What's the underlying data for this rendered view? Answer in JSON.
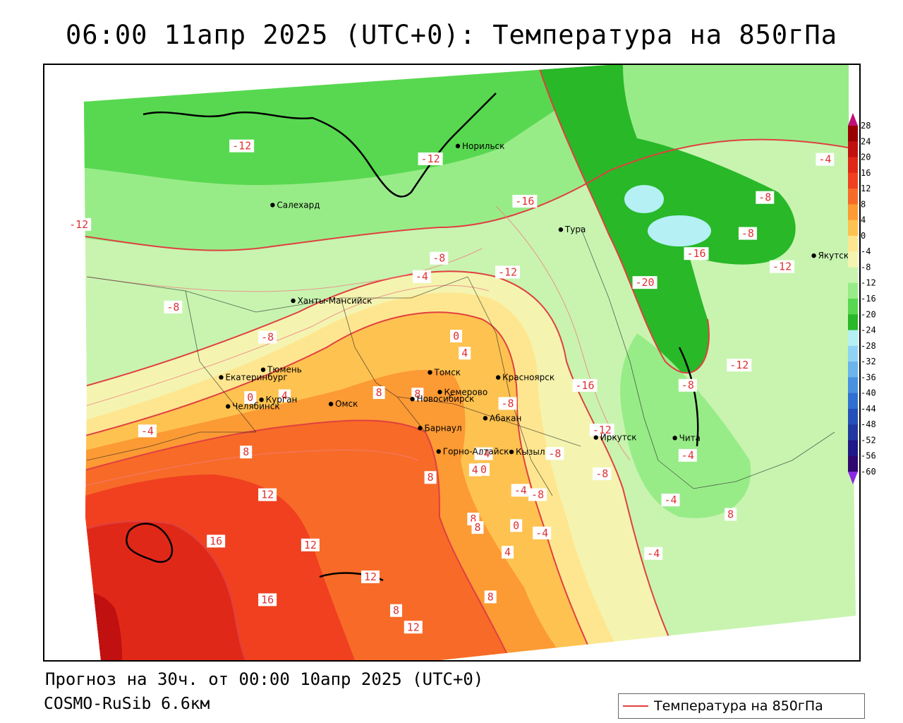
{
  "title": "06:00 11апр 2025 (UTC+0): Температура на 850гПа",
  "footer": {
    "forecast": "Прогноз на 30ч. от 00:00 10апр 2025 (UTC+0)",
    "model": "COSMO-RuSib 6.6км"
  },
  "legend": {
    "label": "Температура на 850гПа",
    "line_color": "#e04040"
  },
  "colorbar": {
    "ticks": [
      "28",
      "24",
      "20",
      "16",
      "12",
      "8",
      "4",
      "0",
      "-4",
      "-8",
      "-12",
      "-16",
      "-20",
      "-24",
      "-28",
      "-32",
      "-36",
      "-40",
      "-44",
      "-48",
      "-52",
      "-56",
      "-60"
    ],
    "colors": [
      "#9b0000",
      "#c01010",
      "#e02818",
      "#f04020",
      "#f86a28",
      "#fc9a34",
      "#fec250",
      "#fee690",
      "#f4f4b0",
      "#c8f4b0",
      "#98ec88",
      "#58d850",
      "#28b828",
      "#b4f0f4",
      "#90d4f4",
      "#6cb4ec",
      "#4890e0",
      "#3070d0",
      "#2450b8",
      "#2038a0",
      "#201888",
      "#300870"
    ]
  },
  "cities": [
    {
      "name": "Норильск",
      "lon": 88.2,
      "lat": 69.35
    },
    {
      "name": "Салехард",
      "lon": 66.6,
      "lat": 66.53
    },
    {
      "name": "Тура",
      "lon": 100.2,
      "lat": 64.27
    },
    {
      "name": "Якутск",
      "lon": 129.7,
      "lat": 62.03
    },
    {
      "name": "Ханты-Мансийск",
      "lon": 69.0,
      "lat": 61.0
    },
    {
      "name": "Екатеринбург",
      "lon": 60.6,
      "lat": 56.84
    },
    {
      "name": "Тюмень",
      "lon": 65.5,
      "lat": 57.15
    },
    {
      "name": "Челябинск",
      "lon": 61.4,
      "lat": 55.16
    },
    {
      "name": "Курган",
      "lon": 65.3,
      "lat": 55.44
    },
    {
      "name": "Омск",
      "lon": 73.4,
      "lat": 54.99
    },
    {
      "name": "Новосибирск",
      "lon": 82.9,
      "lat": 55.03
    },
    {
      "name": "Томск",
      "lon": 84.95,
      "lat": 56.5
    },
    {
      "name": "Кемерово",
      "lon": 86.1,
      "lat": 55.35
    },
    {
      "name": "Красноярск",
      "lon": 92.9,
      "lat": 56.01
    },
    {
      "name": "Барнаул",
      "lon": 83.8,
      "lat": 53.35
    },
    {
      "name": "Абакан",
      "lon": 91.4,
      "lat": 53.72
    },
    {
      "name": "Горно-Алтайск",
      "lon": 85.96,
      "lat": 51.96
    },
    {
      "name": "Кызыл",
      "lon": 94.45,
      "lat": 51.72
    },
    {
      "name": "Иркутск",
      "lon": 104.3,
      "lat": 52.29
    },
    {
      "name": "Чита",
      "lon": 113.5,
      "lat": 52.03
    }
  ],
  "isotherm_labels": [
    {
      "value": "-4",
      "lon": 131,
      "lat": 67.5
    },
    {
      "value": "-8",
      "lon": 124,
      "lat": 65.5
    },
    {
      "value": "-8",
      "lon": 122,
      "lat": 63.5
    },
    {
      "value": "-12",
      "lon": 63,
      "lat": 70
    },
    {
      "value": "-12",
      "lon": 44,
      "lat": 66
    },
    {
      "value": "-12",
      "lon": 85,
      "lat": 68.7
    },
    {
      "value": "-16",
      "lon": 96,
      "lat": 66
    },
    {
      "value": "-16",
      "lon": 116,
      "lat": 62.5
    },
    {
      "value": "-12",
      "lon": 126,
      "lat": 61.5
    },
    {
      "value": "-20",
      "lon": 110,
      "lat": 61
    },
    {
      "value": "-8",
      "lon": 86,
      "lat": 63
    },
    {
      "value": "-4",
      "lon": 84,
      "lat": 62
    },
    {
      "value": "-12",
      "lon": 94,
      "lat": 62
    },
    {
      "value": "-8",
      "lon": 55,
      "lat": 61
    },
    {
      "value": "-8",
      "lon": 66,
      "lat": 59
    },
    {
      "value": "0",
      "lon": 88,
      "lat": 58.5
    },
    {
      "value": "4",
      "lon": 89,
      "lat": 57.5
    },
    {
      "value": "-12",
      "lon": 121,
      "lat": 56
    },
    {
      "value": "-8",
      "lon": 115,
      "lat": 55
    },
    {
      "value": "-16",
      "lon": 103,
      "lat": 55.3
    },
    {
      "value": "0",
      "lon": 64,
      "lat": 55.6
    },
    {
      "value": "4",
      "lon": 68,
      "lat": 55.6
    },
    {
      "value": "8",
      "lon": 79,
      "lat": 55.5
    },
    {
      "value": "8",
      "lon": 83.5,
      "lat": 55.3
    },
    {
      "value": "-8",
      "lon": 94,
      "lat": 54.5
    },
    {
      "value": "-4",
      "lon": 52,
      "lat": 54
    },
    {
      "value": "8",
      "lon": 63.5,
      "lat": 52.5
    },
    {
      "value": "12",
      "lon": 66,
      "lat": 50
    },
    {
      "value": "16",
      "lon": 60,
      "lat": 47.5
    },
    {
      "value": "12",
      "lon": 71,
      "lat": 47
    },
    {
      "value": "16",
      "lon": 66,
      "lat": 44
    },
    {
      "value": "12",
      "lon": 78,
      "lat": 45
    },
    {
      "value": "8",
      "lon": 81,
      "lat": 43
    },
    {
      "value": "12",
      "lon": 83,
      "lat": 42
    },
    {
      "value": "8",
      "lon": 85,
      "lat": 50.5
    },
    {
      "value": "-4",
      "lon": 91.2,
      "lat": 51.7
    },
    {
      "value": "0",
      "lon": 91.2,
      "lat": 50.8
    },
    {
      "value": "4",
      "lon": 90.2,
      "lat": 50.8
    },
    {
      "value": "-8",
      "lon": 99.5,
      "lat": 51.5
    },
    {
      "value": "-4",
      "lon": 95.5,
      "lat": 49.5
    },
    {
      "value": "-8",
      "lon": 97.5,
      "lat": 49.2
    },
    {
      "value": "-12",
      "lon": 105,
      "lat": 52.7
    },
    {
      "value": "-8",
      "lon": 105,
      "lat": 50.2
    },
    {
      "value": "-4",
      "lon": 115,
      "lat": 51
    },
    {
      "value": "-4",
      "lon": 113,
      "lat": 48.5
    },
    {
      "value": "8",
      "lon": 90,
      "lat": 48
    },
    {
      "value": "8",
      "lon": 90.5,
      "lat": 47.5
    },
    {
      "value": "0",
      "lon": 95,
      "lat": 47.5
    },
    {
      "value": "-4",
      "lon": 98,
      "lat": 47
    },
    {
      "value": "4",
      "lon": 94,
      "lat": 46
    },
    {
      "value": "8",
      "lon": 92,
      "lat": 43.5
    },
    {
      "value": "-4",
      "lon": 111,
      "lat": 45.5
    },
    {
      "value": "8",
      "lon": 120,
      "lat": 47.5
    }
  ],
  "map_extent": {
    "lon_min": 40,
    "lon_max": 135,
    "lat_min": 40,
    "lat_max": 74
  }
}
